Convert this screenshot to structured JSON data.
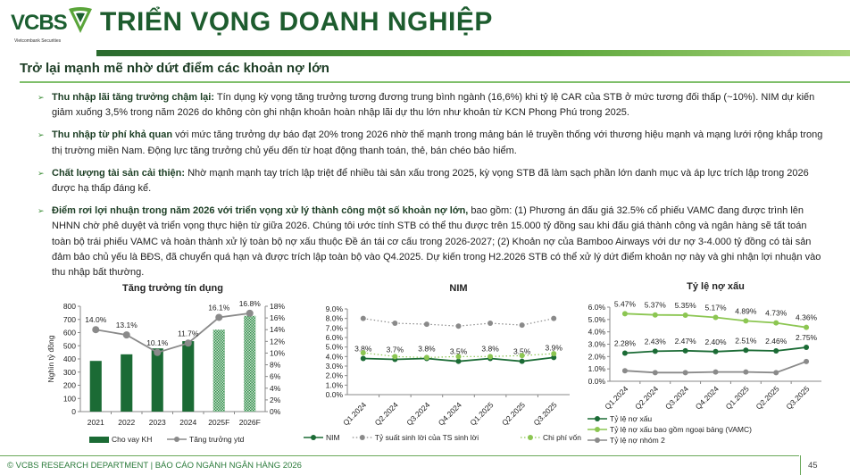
{
  "logo": {
    "brand": "VCBS",
    "tagline": "Vietcombank Securities"
  },
  "header": {
    "title": "TRIỂN VỌNG DOANH NGHIỆP"
  },
  "subtitle": "Trở lại mạnh mẽ nhờ dứt điểm các khoản nợ lớn",
  "bullets": [
    {
      "bold": "Thu nhập lãi tăng trưởng chậm lại:",
      "text": " Tín dụng kỳ vọng tăng trưởng tương đương trung bình ngành (16,6%) khi tỷ lệ CAR của STB ở mức tương đối thấp (~10%). NIM dự kiến giảm xuống 3,5% trong năm 2026 do không còn ghi nhận khoản hoàn nhập lãi dự thu lớn như khoản từ KCN Phong Phú trong 2025."
    },
    {
      "bold": "Thu nhập từ phí khả quan",
      "text": " với mức tăng trưởng dự báo đạt 20% trong 2026 nhờ thế mạnh trong mảng bán lẻ truyền thống với thương hiệu mạnh và mạng lưới rộng khắp trong thị trường miền Nam. Động lực tăng trưởng chủ yếu đến từ hoạt động thanh toán, thẻ, bán chéo bảo hiểm."
    },
    {
      "bold": "Chất lượng tài sản cải thiện:",
      "text": " Nhờ mạnh mạnh tay trích lập triệt để nhiều tài sản xấu trong 2025, kỳ vọng STB đã làm sạch phần lớn danh mục và áp lực trích lập trong 2026 được hạ thấp đáng kể."
    },
    {
      "bold": "Điểm rơi lợi nhuận trong năm 2026 với triển vọng xử lý thành công một số khoản nợ lớn,",
      "text": " bao gồm: (1) Phương án đấu giá 32.5% cổ phiếu VAMC đang được trình lên NHNN chờ phê duyệt và triển vọng thực hiện từ giữa 2026. Chúng tôi ước tính STB có thể thu được trên 15.000 tỷ đồng sau khi đấu giá thành công và ngân hàng sẽ tất toán toàn bộ trái phiếu VAMC và hoàn thành xử lý toàn bộ nợ xấu thuộc Đề án tái cơ cấu trong 2026-2027; (2) Khoản nợ của Bamboo Airways với dư nợ 3-4.000 tỷ đồng có tài sản đảm bảo chủ yếu là BĐS, đã chuyển quá hạn và được trích lập toàn bộ vào Q4.2025. Dự kiến trong H2.2026 STB có thể xử lý dứt điểm khoản nợ này và ghi nhận lợi nhuận vào thu nhập bất thường."
    }
  ],
  "chart_data": [
    {
      "type": "bar+line",
      "title": "Tăng trưởng tín dụng",
      "categories": [
        "2021",
        "2022",
        "2023",
        "2024",
        "2025F",
        "2026F"
      ],
      "ylabel": "Nghìn tỷ đồng",
      "ylim": [
        0,
        800
      ],
      "yticks": [
        "0",
        "100",
        "200",
        "300",
        "400",
        "500",
        "600",
        "700",
        "800"
      ],
      "y2lim": [
        0,
        18
      ],
      "y2ticks": [
        "0%",
        "2%",
        "4%",
        "6%",
        "8%",
        "10%",
        "12%",
        "14%",
        "16%",
        "18%"
      ],
      "series": [
        {
          "name": "Cho vay KH",
          "kind": "bar",
          "values": [
            385,
            435,
            480,
            535,
            622,
            727
          ],
          "forecast_from": 4,
          "color": "#1b6b35"
        },
        {
          "name": "Tăng trưởng ytd",
          "kind": "line",
          "axis": "right",
          "values": [
            14.0,
            13.1,
            10.1,
            11.7,
            16.1,
            16.8
          ],
          "labels": [
            "14.0%",
            "13.1%",
            "10.1%",
            "11.7%",
            "16.1%",
            "16.8%"
          ],
          "color": "#8a8a8a"
        }
      ],
      "legend": "bottom"
    },
    {
      "type": "line",
      "title": "NIM",
      "categories": [
        "Q1.2024",
        "Q2.2024",
        "Q3.2024",
        "Q4.2024",
        "Q1.2025",
        "Q2.2025",
        "Q3.2025"
      ],
      "ylim": [
        0,
        9
      ],
      "yticks": [
        "0.0%",
        "1.0%",
        "2.0%",
        "3.0%",
        "4.0%",
        "5.0%",
        "6.0%",
        "7.0%",
        "8.0%",
        "9.0%"
      ],
      "series": [
        {
          "name": "NIM",
          "values": [
            3.8,
            3.7,
            3.8,
            3.5,
            3.8,
            3.5,
            3.9
          ],
          "labels": [
            "3.8%",
            "3.7%",
            "3.8%",
            "3.5%",
            "3.8%",
            "3.5%",
            "3.9%"
          ],
          "color": "#1b6b35",
          "dash": false
        },
        {
          "name": "Tỷ suất sinh lời của TS sinh lời",
          "values": [
            8.0,
            7.5,
            7.4,
            7.2,
            7.5,
            7.3,
            8.0
          ],
          "color": "#8a8a8a",
          "dash": true
        },
        {
          "name": "Chi phí vốn",
          "values": [
            4.4,
            4.0,
            3.9,
            4.0,
            4.0,
            4.1,
            4.3
          ],
          "color": "#8cc652",
          "dash": true
        }
      ],
      "legend": "bottom"
    },
    {
      "type": "line",
      "title": "Tỷ lệ nợ xấu",
      "categories": [
        "Q1.2024",
        "Q2.2024",
        "Q3.2024",
        "Q4.2024",
        "Q1.2025",
        "Q2.2025",
        "Q3.2025"
      ],
      "ylim": [
        0,
        6
      ],
      "yticks": [
        "0.0%",
        "1.0%",
        "2.0%",
        "3.0%",
        "4.0%",
        "5.0%",
        "6.0%"
      ],
      "series": [
        {
          "name": "Tỷ lệ nợ xấu",
          "values": [
            2.28,
            2.43,
            2.47,
            2.4,
            2.51,
            2.46,
            2.75
          ],
          "labels": [
            "2.28%",
            "2.43%",
            "2.47%",
            "2.40%",
            "2.51%",
            "2.46%",
            "2.75%"
          ],
          "color": "#1b6b35"
        },
        {
          "name": "Tỷ lệ nợ xấu bao gồm ngoại bảng (VAMC)",
          "values": [
            5.47,
            5.37,
            5.35,
            5.17,
            4.89,
            4.73,
            4.36
          ],
          "labels": [
            "5.47%",
            "5.37%",
            "5.35%",
            "5.17%",
            "4.89%",
            "4.73%",
            "4.36%"
          ],
          "color": "#8cc652"
        },
        {
          "name": "Tỷ lệ nợ nhóm 2",
          "values": [
            0.85,
            0.7,
            0.7,
            0.75,
            0.75,
            0.7,
            1.6
          ],
          "color": "#8a8a8a"
        }
      ],
      "legend": "bottom"
    }
  ],
  "footer": {
    "text": "© VCBS RESEARCH DEPARTMENT | BÁO CÁO NGÀNH NGÂN HÀNG 2026",
    "page": "45"
  }
}
